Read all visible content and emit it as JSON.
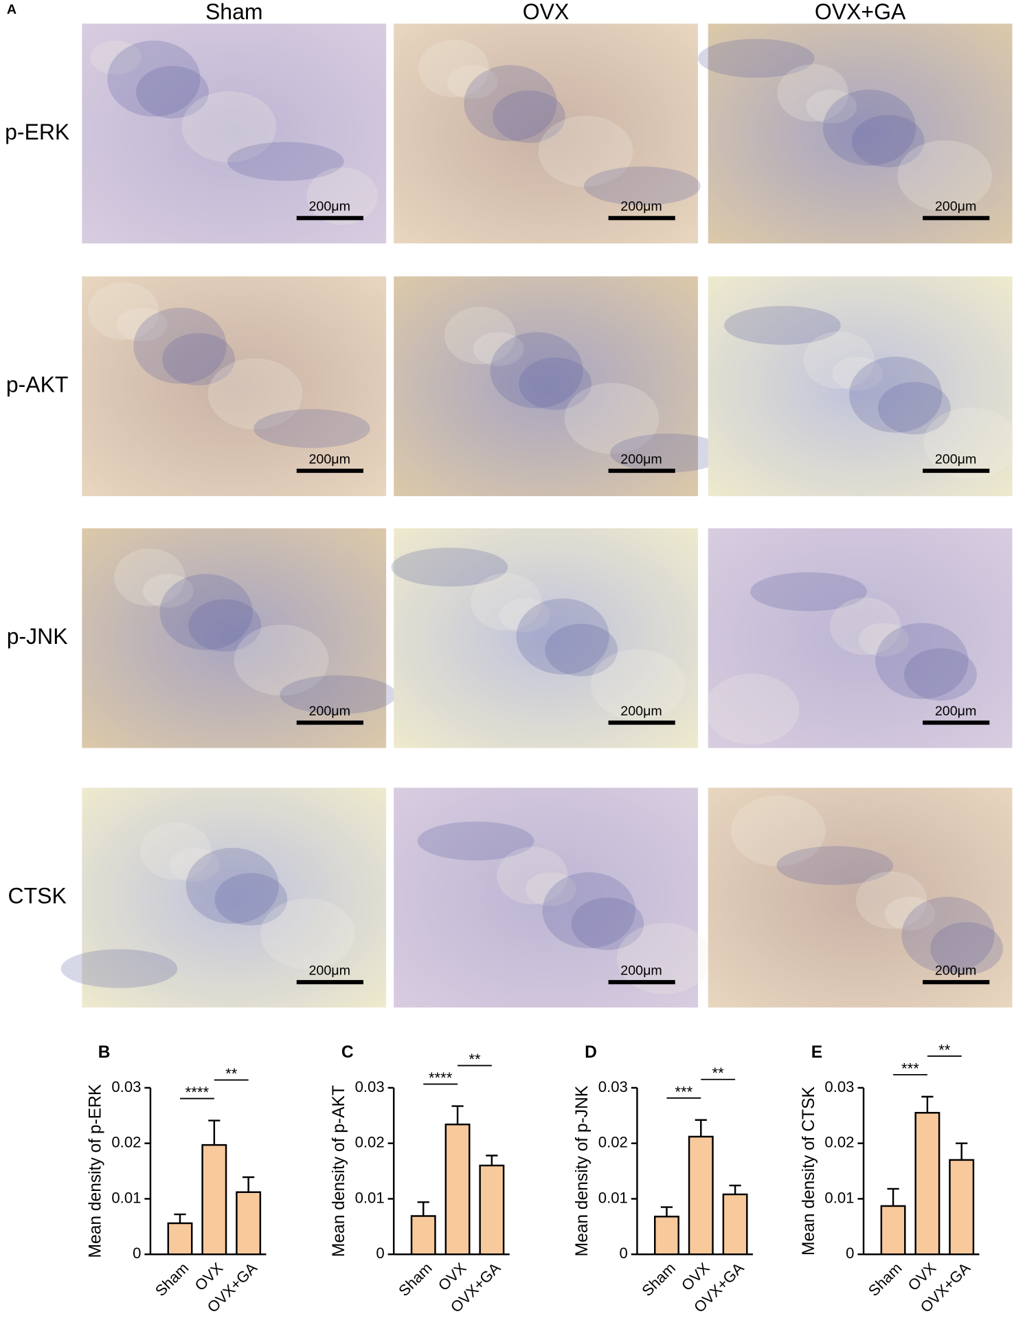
{
  "panel_a": {
    "label": "A",
    "columns": [
      "Sham",
      "OVX",
      "OVX+GA"
    ],
    "rows": [
      "p-ERK",
      "p-AKT",
      "p-JNK",
      "CTSK"
    ],
    "scale_bar": "200μm"
  },
  "chart_data": [
    {
      "type": "bar",
      "label": "B",
      "ylabel": "Mean density of p-ERK",
      "categories": [
        "Sham",
        "OVX",
        "OVX+GA"
      ],
      "values": [
        0.0056,
        0.0197,
        0.0112
      ],
      "errors": [
        0.0016,
        0.0044,
        0.0027
      ],
      "color": "#f8c99b",
      "ylim": [
        0,
        0.03
      ],
      "yticks": [
        0,
        0.01,
        0.02,
        0.03
      ],
      "annotations": [
        {
          "label": "****",
          "pair": [
            "Sham",
            "OVX"
          ]
        },
        {
          "label": "**",
          "pair": [
            "OVX",
            "OVX+GA"
          ]
        }
      ]
    },
    {
      "type": "bar",
      "label": "C",
      "ylabel": "Mean density of p-AKT",
      "categories": [
        "Sham",
        "OVX",
        "OVX+GA"
      ],
      "values": [
        0.0069,
        0.0234,
        0.016
      ],
      "errors": [
        0.0025,
        0.0033,
        0.0018
      ],
      "color": "#f8c99b",
      "ylim": [
        0,
        0.03
      ],
      "yticks": [
        0,
        0.01,
        0.02,
        0.03
      ],
      "annotations": [
        {
          "label": "****",
          "pair": [
            "Sham",
            "OVX"
          ]
        },
        {
          "label": "**",
          "pair": [
            "OVX",
            "OVX+GA"
          ]
        }
      ]
    },
    {
      "type": "bar",
      "label": "D",
      "ylabel": "Mean density of p-JNK",
      "categories": [
        "Sham",
        "OVX",
        "OVX+GA"
      ],
      "values": [
        0.0068,
        0.0212,
        0.0108
      ],
      "errors": [
        0.0017,
        0.003,
        0.0016
      ],
      "color": "#f8c99b",
      "ylim": [
        0,
        0.03
      ],
      "yticks": [
        0,
        0.01,
        0.02,
        0.03
      ],
      "annotations": [
        {
          "label": "***",
          "pair": [
            "Sham",
            "OVX"
          ]
        },
        {
          "label": "**",
          "pair": [
            "OVX",
            "OVX+GA"
          ]
        }
      ]
    },
    {
      "type": "bar",
      "label": "E",
      "ylabel": "Mean density of CTSK",
      "categories": [
        "Sham",
        "OVX",
        "OVX+GA"
      ],
      "values": [
        0.0087,
        0.0255,
        0.017
      ],
      "errors": [
        0.0031,
        0.0029,
        0.003
      ],
      "color": "#f8c99b",
      "ylim": [
        0,
        0.03
      ],
      "yticks": [
        0,
        0.01,
        0.02,
        0.03
      ],
      "annotations": [
        {
          "label": "***",
          "pair": [
            "Sham",
            "OVX"
          ]
        },
        {
          "label": "**",
          "pair": [
            "OVX",
            "OVX+GA"
          ]
        }
      ]
    }
  ]
}
